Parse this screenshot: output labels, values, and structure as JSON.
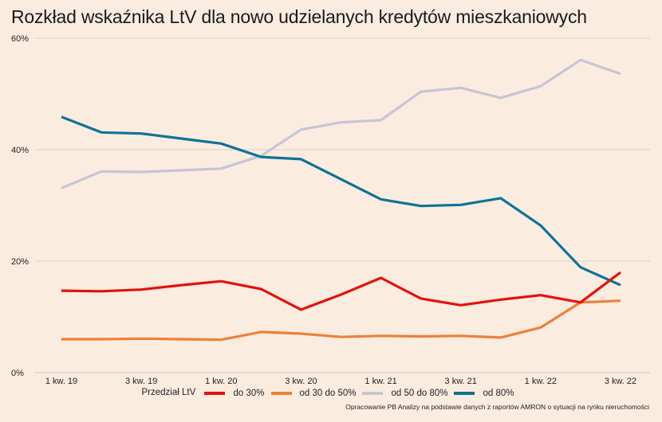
{
  "chart_data": {
    "type": "line",
    "title": "Rozkład wskaźnika LtV dla nowo udzielanych kredytów mieszkaniowych",
    "xlabel": "",
    "ylabel": "",
    "ylim": [
      0,
      60
    ],
    "yticks": [
      0,
      20,
      40,
      60
    ],
    "ytick_labels": [
      "0%",
      "20%",
      "40%",
      "60%"
    ],
    "grid": true,
    "x": [
      "1 kw. 19",
      "2 kw. 19",
      "3 kw. 19",
      "4 kw. 19",
      "1 kw. 20",
      "2 kw. 20",
      "3 kw. 20",
      "4 kw. 20",
      "1 kw. 21",
      "2 kw. 21",
      "3 kw. 21",
      "4 kw. 21",
      "1 kw. 22",
      "2 kw. 22",
      "3 kw. 22"
    ],
    "xtick_labels": [
      "1 kw. 19",
      "3 kw. 19",
      "1 kw. 20",
      "3 kw. 20",
      "1 kw. 21",
      "3 kw. 21",
      "1 kw. 22",
      "3 kw. 22"
    ],
    "legend_title": "Przedział LtV",
    "legend_position": "bottom",
    "series": [
      {
        "name": "do 30%",
        "color": "#e3120b",
        "values": [
          14.7,
          14.6,
          14.9,
          15.7,
          16.4,
          15.0,
          11.3,
          14.0,
          17.0,
          13.3,
          12.1,
          13.1,
          13.9,
          12.6,
          18.0
        ]
      },
      {
        "name": "od 30 do 50%",
        "color": "#eb8138",
        "values": [
          6.0,
          6.0,
          6.1,
          6.0,
          5.9,
          7.3,
          7.0,
          6.4,
          6.6,
          6.5,
          6.6,
          6.3,
          8.1,
          12.6,
          12.9
        ]
      },
      {
        "name": "od 50 do 80%",
        "color": "#c6c6d3",
        "values": [
          33.1,
          36.1,
          36.0,
          36.3,
          36.6,
          38.9,
          43.6,
          44.9,
          45.3,
          50.4,
          51.1,
          49.3,
          51.4,
          56.1,
          53.6
        ]
      },
      {
        "name": "od 80%",
        "color": "#0f7297",
        "values": [
          45.9,
          43.1,
          42.9,
          42.0,
          41.1,
          38.7,
          38.3,
          34.7,
          31.1,
          29.9,
          30.1,
          31.3,
          26.4,
          18.9,
          15.7
        ]
      }
    ],
    "source": "Opracowanie PB Analizy na podstawie danych z raportów AMRON o sytuacji na rynku nieruchomości"
  }
}
